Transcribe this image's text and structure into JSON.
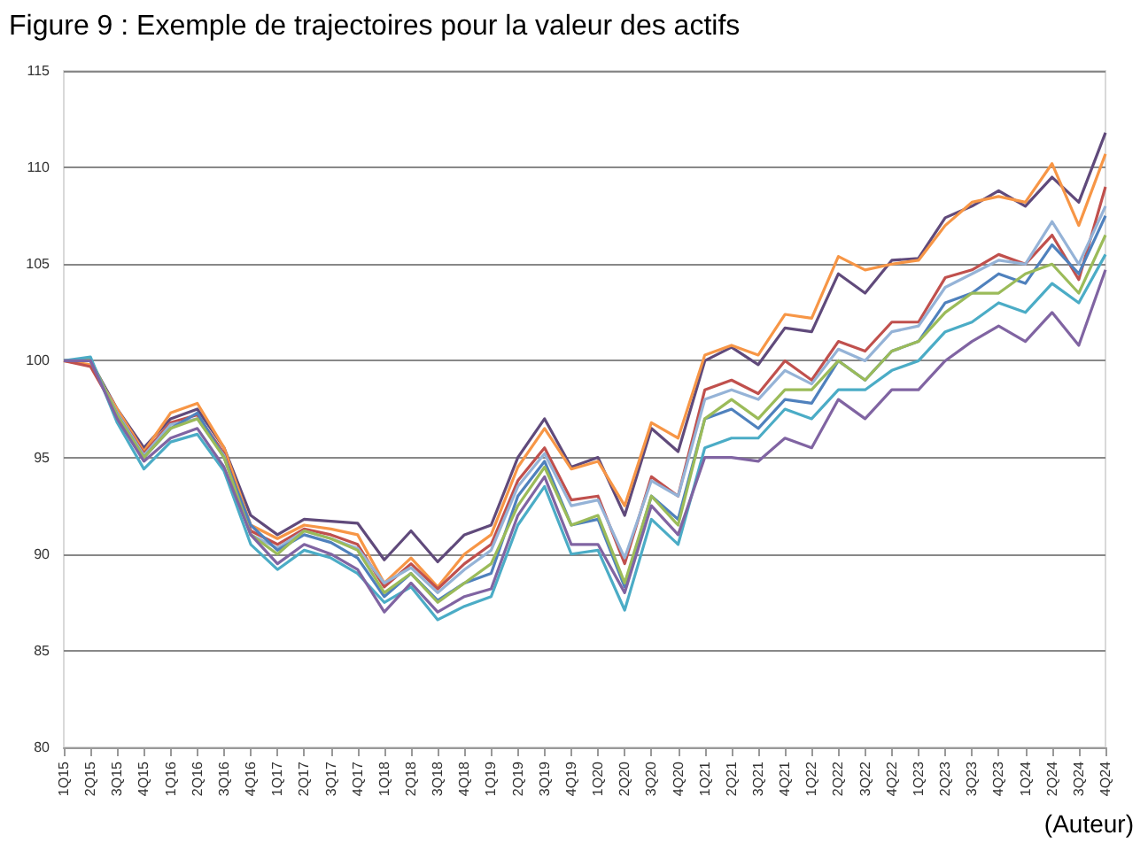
{
  "chart_data": {
    "type": "line",
    "title": "Figure 9 : Exemple de trajectoires pour la valeur des actifs",
    "categories": [
      "1Q15",
      "2Q15",
      "3Q15",
      "4Q15",
      "1Q16",
      "2Q16",
      "3Q16",
      "4Q16",
      "1Q17",
      "2Q17",
      "3Q17",
      "4Q17",
      "1Q18",
      "2Q18",
      "3Q18",
      "4Q18",
      "1Q19",
      "2Q19",
      "3Q19",
      "4Q19",
      "1Q20",
      "2Q20",
      "3Q20",
      "4Q20",
      "1Q21",
      "2Q21",
      "3Q21",
      "4Q21",
      "1Q22",
      "2Q22",
      "3Q22",
      "4Q22",
      "1Q23",
      "2Q23",
      "3Q23",
      "4Q23",
      "1Q24",
      "2Q24",
      "3Q24",
      "4Q24"
    ],
    "series": [
      {
        "color": "#604a7b",
        "values": [
          100,
          100,
          97.5,
          95.5,
          97,
          97.5,
          95.5,
          92,
          91,
          91.8,
          91.7,
          91.6,
          89.7,
          91.2,
          89.6,
          91,
          91.5,
          95,
          97,
          94.5,
          95,
          92,
          96.5,
          95.3,
          100,
          100.7,
          99.8,
          101.7,
          101.5,
          104.5,
          103.5,
          105.2,
          105.3,
          107.4,
          108,
          108.8,
          108,
          109.5,
          108.2,
          111.8
        ]
      },
      {
        "color": "#f79646",
        "values": [
          100,
          99.8,
          97.5,
          95.3,
          97.3,
          97.8,
          95.5,
          91.5,
          90.8,
          91.5,
          91.3,
          91,
          88.5,
          89.8,
          88.3,
          90,
          91,
          94.5,
          96.5,
          94.4,
          94.8,
          92.5,
          96.8,
          96,
          100.3,
          100.8,
          100.3,
          102.4,
          102.2,
          105.4,
          104.7,
          105,
          105.2,
          107,
          108.2,
          108.5,
          108.2,
          110.2,
          107,
          110.7
        ]
      },
      {
        "color": "#c0504d",
        "values": [
          100,
          99.7,
          97.3,
          95.2,
          96.8,
          97.2,
          95.2,
          91.2,
          90.5,
          91.3,
          91,
          90.5,
          88.3,
          89.5,
          88.2,
          89.5,
          90.5,
          93.8,
          95.5,
          92.8,
          93,
          89.5,
          94,
          93,
          98.5,
          99,
          98.3,
          100,
          99,
          101,
          100.5,
          102,
          102,
          104.3,
          104.7,
          105.5,
          105,
          106.5,
          104.2,
          109
        ]
      },
      {
        "color": "#95b3d7",
        "values": [
          100,
          100,
          97.3,
          95.1,
          96.7,
          97,
          95.1,
          91,
          90.3,
          91.2,
          90.8,
          90.3,
          88.5,
          89.3,
          88,
          89.2,
          90.2,
          93.5,
          95.2,
          92.5,
          92.8,
          89.8,
          93.8,
          93,
          98,
          98.5,
          98,
          99.5,
          98.8,
          100.6,
          100,
          101.5,
          101.8,
          103.8,
          104.5,
          105.2,
          105,
          107.2,
          105,
          108
        ]
      },
      {
        "color": "#4f81bd",
        "values": [
          100,
          100,
          97.2,
          95,
          96.5,
          97.3,
          95,
          91.5,
          90.2,
          91,
          90.6,
          89.8,
          87.8,
          89,
          87.6,
          88.5,
          89,
          93,
          94.8,
          91.5,
          91.8,
          88.3,
          93,
          91.8,
          97,
          97.5,
          96.5,
          98,
          97.8,
          100,
          99,
          100.5,
          101,
          103,
          103.5,
          104.5,
          104,
          106,
          104.5,
          107.5
        ]
      },
      {
        "color": "#9bbb59",
        "values": [
          100,
          100.1,
          97.2,
          95,
          96.5,
          97,
          95,
          91,
          90,
          91.2,
          90.8,
          90.2,
          88,
          89,
          87.5,
          88.5,
          89.5,
          92.5,
          94.5,
          91.5,
          92,
          88.5,
          93,
          91.5,
          97,
          98,
          97,
          98.5,
          98.5,
          100,
          99,
          100.5,
          101,
          102.5,
          103.5,
          103.5,
          104.5,
          105,
          103.5,
          106.5
        ]
      },
      {
        "color": "#4bacc6",
        "values": [
          100,
          100.2,
          96.8,
          94.4,
          95.8,
          96.2,
          94.3,
          90.5,
          89.2,
          90.2,
          89.8,
          89,
          87.5,
          88.3,
          86.6,
          87.3,
          87.8,
          91.5,
          93.5,
          90,
          90.2,
          87.1,
          91.8,
          90.5,
          95.5,
          96,
          96,
          97.5,
          97,
          98.5,
          98.5,
          99.5,
          100,
          101.5,
          102,
          103,
          102.5,
          104,
          103,
          105.5
        ]
      },
      {
        "color": "#8064a2",
        "values": [
          100,
          100,
          97,
          94.8,
          96,
          96.5,
          94.5,
          91,
          89.5,
          90.5,
          90,
          89.2,
          87,
          88.5,
          87,
          87.8,
          88.2,
          92,
          94,
          90.5,
          90.5,
          88,
          92.5,
          91,
          95,
          95,
          94.8,
          96,
          95.5,
          98,
          97,
          98.5,
          98.5,
          100,
          101,
          101.8,
          101,
          102.5,
          100.8,
          104.7
        ]
      }
    ],
    "ylim": [
      80,
      115
    ],
    "yticks": [
      80,
      85,
      90,
      95,
      100,
      105,
      110,
      115
    ],
    "grid": "y",
    "marker": "none",
    "line_style": "solid",
    "annotations": [
      "(Auteur)"
    ]
  }
}
